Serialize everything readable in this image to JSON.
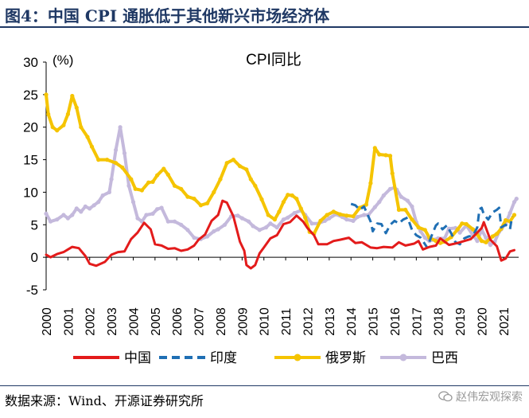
{
  "figure_title": "图4：中国 CPI 通胀低于其他新兴市场经济体",
  "source_text": "数据来源：Wind、开源证券研究所",
  "watermark": "赵伟宏观探索",
  "chart_data": {
    "type": "line",
    "title": "CPI同比",
    "ylabel": "(%)",
    "ylim": [
      -5,
      30
    ],
    "yticks": [
      -5,
      0,
      5,
      10,
      15,
      20,
      25,
      30
    ],
    "xlim": [
      2000,
      2021.7
    ],
    "xticks": [
      "2000",
      "2001",
      "2002",
      "2003",
      "2004",
      "2005",
      "2006",
      "2007",
      "2008",
      "2009",
      "2010",
      "2011",
      "2012",
      "2013",
      "2014",
      "2015",
      "2016",
      "2017",
      "2018",
      "2019",
      "2020",
      "2021"
    ],
    "grid": false,
    "legend_position": "bottom",
    "series": [
      {
        "name": "中国",
        "color": "#e31b1b",
        "style": "solid",
        "points": [
          [
            2000.0,
            0.4
          ],
          [
            2000.2,
            0.0
          ],
          [
            2000.5,
            0.5
          ],
          [
            2000.8,
            0.8
          ],
          [
            2001.0,
            1.2
          ],
          [
            2001.2,
            1.6
          ],
          [
            2001.5,
            1.4
          ],
          [
            2001.8,
            0.2
          ],
          [
            2002.0,
            -1.0
          ],
          [
            2002.3,
            -1.3
          ],
          [
            2002.7,
            -0.7
          ],
          [
            2003.0,
            0.4
          ],
          [
            2003.3,
            0.8
          ],
          [
            2003.6,
            0.9
          ],
          [
            2003.9,
            2.8
          ],
          [
            2004.2,
            3.8
          ],
          [
            2004.5,
            5.3
          ],
          [
            2004.8,
            4.3
          ],
          [
            2005.0,
            2.0
          ],
          [
            2005.3,
            1.8
          ],
          [
            2005.6,
            1.3
          ],
          [
            2005.9,
            1.4
          ],
          [
            2006.2,
            1.0
          ],
          [
            2006.5,
            1.2
          ],
          [
            2006.8,
            1.8
          ],
          [
            2007.0,
            2.7
          ],
          [
            2007.3,
            3.5
          ],
          [
            2007.6,
            5.6
          ],
          [
            2007.9,
            6.5
          ],
          [
            2008.1,
            8.7
          ],
          [
            2008.3,
            8.4
          ],
          [
            2008.6,
            6.3
          ],
          [
            2008.9,
            2.4
          ],
          [
            2009.1,
            1.0
          ],
          [
            2009.2,
            -1.2
          ],
          [
            2009.4,
            -1.7
          ],
          [
            2009.6,
            -1.2
          ],
          [
            2009.8,
            0.6
          ],
          [
            2010.0,
            1.5
          ],
          [
            2010.3,
            2.9
          ],
          [
            2010.6,
            3.4
          ],
          [
            2010.9,
            5.1
          ],
          [
            2011.2,
            5.4
          ],
          [
            2011.5,
            6.4
          ],
          [
            2011.8,
            5.5
          ],
          [
            2012.0,
            4.5
          ],
          [
            2012.3,
            3.4
          ],
          [
            2012.5,
            2.0
          ],
          [
            2012.9,
            2.0
          ],
          [
            2013.2,
            2.5
          ],
          [
            2013.5,
            2.7
          ],
          [
            2013.9,
            3.0
          ],
          [
            2014.2,
            2.2
          ],
          [
            2014.5,
            2.3
          ],
          [
            2014.9,
            1.5
          ],
          [
            2015.2,
            1.4
          ],
          [
            2015.5,
            1.6
          ],
          [
            2015.9,
            1.5
          ],
          [
            2016.2,
            2.3
          ],
          [
            2016.5,
            1.8
          ],
          [
            2016.9,
            2.1
          ],
          [
            2017.1,
            2.5
          ],
          [
            2017.3,
            1.2
          ],
          [
            2017.6,
            1.6
          ],
          [
            2017.9,
            1.8
          ],
          [
            2018.1,
            2.9
          ],
          [
            2018.5,
            1.9
          ],
          [
            2018.9,
            2.2
          ],
          [
            2019.2,
            2.5
          ],
          [
            2019.5,
            2.8
          ],
          [
            2019.8,
            3.8
          ],
          [
            2020.0,
            4.5
          ],
          [
            2020.1,
            5.4
          ],
          [
            2020.4,
            2.7
          ],
          [
            2020.7,
            1.7
          ],
          [
            2020.9,
            -0.5
          ],
          [
            2021.1,
            -0.2
          ],
          [
            2021.3,
            0.9
          ],
          [
            2021.5,
            1.1
          ]
        ]
      },
      {
        "name": "印度",
        "color": "#1f6fb4",
        "style": "dashed",
        "points": [
          [
            2014.0,
            8.2
          ],
          [
            2014.2,
            8.0
          ],
          [
            2014.4,
            7.3
          ],
          [
            2014.6,
            7.8
          ],
          [
            2014.9,
            5.5
          ],
          [
            2015.0,
            4.0
          ],
          [
            2015.2,
            5.2
          ],
          [
            2015.4,
            5.1
          ],
          [
            2015.6,
            3.7
          ],
          [
            2015.8,
            5.0
          ],
          [
            2016.0,
            5.6
          ],
          [
            2016.2,
            5.2
          ],
          [
            2016.4,
            5.8
          ],
          [
            2016.6,
            6.1
          ],
          [
            2016.8,
            4.2
          ],
          [
            2017.0,
            3.4
          ],
          [
            2017.2,
            3.0
          ],
          [
            2017.4,
            2.0
          ],
          [
            2017.5,
            1.5
          ],
          [
            2017.7,
            3.3
          ],
          [
            2017.9,
            4.9
          ],
          [
            2018.0,
            5.2
          ],
          [
            2018.2,
            4.3
          ],
          [
            2018.4,
            4.9
          ],
          [
            2018.6,
            3.7
          ],
          [
            2018.8,
            2.3
          ],
          [
            2019.0,
            2.0
          ],
          [
            2019.2,
            2.9
          ],
          [
            2019.4,
            3.2
          ],
          [
            2019.6,
            3.3
          ],
          [
            2019.8,
            4.6
          ],
          [
            2019.9,
            7.4
          ],
          [
            2020.0,
            7.6
          ],
          [
            2020.1,
            6.6
          ],
          [
            2020.3,
            5.8
          ],
          [
            2020.5,
            6.9
          ],
          [
            2020.7,
            7.3
          ],
          [
            2020.8,
            7.6
          ],
          [
            2020.9,
            4.6
          ],
          [
            2021.1,
            5.0
          ],
          [
            2021.3,
            4.3
          ],
          [
            2021.4,
            6.3
          ]
        ]
      },
      {
        "name": "俄罗斯",
        "color": "#f5c400",
        "style": "solid-marker",
        "points": [
          [
            2000.0,
            25.0
          ],
          [
            2000.1,
            22.0
          ],
          [
            2000.3,
            20.0
          ],
          [
            2000.5,
            19.5
          ],
          [
            2000.8,
            20.3
          ],
          [
            2001.0,
            22.0
          ],
          [
            2001.2,
            24.8
          ],
          [
            2001.4,
            23.0
          ],
          [
            2001.6,
            20.0
          ],
          [
            2001.9,
            18.5
          ],
          [
            2002.1,
            17.0
          ],
          [
            2002.4,
            15.0
          ],
          [
            2002.8,
            15.0
          ],
          [
            2003.2,
            14.5
          ],
          [
            2003.5,
            13.8
          ],
          [
            2003.9,
            12.0
          ],
          [
            2004.1,
            10.5
          ],
          [
            2004.4,
            10.3
          ],
          [
            2004.7,
            11.5
          ],
          [
            2004.9,
            11.6
          ],
          [
            2005.1,
            12.6
          ],
          [
            2005.4,
            13.6
          ],
          [
            2005.6,
            12.7
          ],
          [
            2005.9,
            11.0
          ],
          [
            2006.2,
            10.5
          ],
          [
            2006.5,
            9.3
          ],
          [
            2006.8,
            9.0
          ],
          [
            2007.1,
            8.0
          ],
          [
            2007.4,
            8.3
          ],
          [
            2007.7,
            10.0
          ],
          [
            2008.0,
            12.0
          ],
          [
            2008.3,
            14.5
          ],
          [
            2008.6,
            15.0
          ],
          [
            2008.9,
            14.0
          ],
          [
            2009.2,
            13.5
          ],
          [
            2009.4,
            12.0
          ],
          [
            2009.6,
            11.0
          ],
          [
            2009.9,
            8.9
          ],
          [
            2010.2,
            6.5
          ],
          [
            2010.5,
            5.8
          ],
          [
            2010.7,
            7.0
          ],
          [
            2010.9,
            8.5
          ],
          [
            2011.1,
            9.6
          ],
          [
            2011.3,
            9.5
          ],
          [
            2011.5,
            9.0
          ],
          [
            2011.7,
            7.5
          ],
          [
            2011.9,
            6.1
          ],
          [
            2012.1,
            3.9
          ],
          [
            2012.3,
            3.6
          ],
          [
            2012.6,
            5.6
          ],
          [
            2012.9,
            6.5
          ],
          [
            2013.2,
            7.0
          ],
          [
            2013.5,
            6.6
          ],
          [
            2013.8,
            6.4
          ],
          [
            2014.1,
            6.3
          ],
          [
            2014.4,
            7.6
          ],
          [
            2014.7,
            8.1
          ],
          [
            2014.9,
            11.4
          ],
          [
            2015.1,
            16.8
          ],
          [
            2015.3,
            15.8
          ],
          [
            2015.6,
            15.7
          ],
          [
            2015.8,
            15.6
          ],
          [
            2015.9,
            12.9
          ],
          [
            2016.2,
            7.3
          ],
          [
            2016.5,
            7.3
          ],
          [
            2016.8,
            5.8
          ],
          [
            2017.1,
            4.6
          ],
          [
            2017.4,
            4.2
          ],
          [
            2017.6,
            3.0
          ],
          [
            2017.9,
            2.5
          ],
          [
            2018.1,
            2.2
          ],
          [
            2018.3,
            2.4
          ],
          [
            2018.6,
            3.1
          ],
          [
            2018.9,
            4.3
          ],
          [
            2019.1,
            5.2
          ],
          [
            2019.3,
            5.1
          ],
          [
            2019.6,
            4.3
          ],
          [
            2019.8,
            3.5
          ],
          [
            2020.0,
            2.5
          ],
          [
            2020.2,
            2.3
          ],
          [
            2020.5,
            3.2
          ],
          [
            2020.7,
            3.6
          ],
          [
            2020.9,
            4.4
          ],
          [
            2021.1,
            5.7
          ],
          [
            2021.3,
            5.5
          ],
          [
            2021.5,
            6.5
          ]
        ]
      },
      {
        "name": "巴西",
        "color": "#c4b9dc",
        "style": "solid-marker",
        "points": [
          [
            2000.0,
            6.7
          ],
          [
            2000.2,
            5.5
          ],
          [
            2000.5,
            5.8
          ],
          [
            2000.8,
            6.5
          ],
          [
            2001.0,
            6.0
          ],
          [
            2001.2,
            6.5
          ],
          [
            2001.4,
            7.5
          ],
          [
            2001.6,
            7.0
          ],
          [
            2001.8,
            7.8
          ],
          [
            2002.0,
            7.5
          ],
          [
            2002.2,
            8.0
          ],
          [
            2002.4,
            8.5
          ],
          [
            2002.6,
            9.5
          ],
          [
            2002.9,
            10.0
          ],
          [
            2003.0,
            12.0
          ],
          [
            2003.2,
            16.5
          ],
          [
            2003.4,
            20.0
          ],
          [
            2003.6,
            16.0
          ],
          [
            2003.8,
            11.0
          ],
          [
            2004.0,
            8.5
          ],
          [
            2004.2,
            6.0
          ],
          [
            2004.4,
            5.5
          ],
          [
            2004.6,
            6.5
          ],
          [
            2004.9,
            6.7
          ],
          [
            2005.1,
            7.4
          ],
          [
            2005.3,
            7.6
          ],
          [
            2005.6,
            5.5
          ],
          [
            2005.9,
            5.5
          ],
          [
            2006.2,
            5.0
          ],
          [
            2006.5,
            4.2
          ],
          [
            2006.8,
            3.0
          ],
          [
            2007.1,
            2.8
          ],
          [
            2007.4,
            3.2
          ],
          [
            2007.7,
            4.0
          ],
          [
            2007.9,
            4.3
          ],
          [
            2008.2,
            5.0
          ],
          [
            2008.5,
            6.3
          ],
          [
            2008.8,
            6.4
          ],
          [
            2009.0,
            6.0
          ],
          [
            2009.3,
            5.5
          ],
          [
            2009.5,
            4.8
          ],
          [
            2009.8,
            4.2
          ],
          [
            2010.1,
            4.6
          ],
          [
            2010.3,
            5.2
          ],
          [
            2010.6,
            4.6
          ],
          [
            2010.9,
            5.8
          ],
          [
            2011.1,
            6.1
          ],
          [
            2011.4,
            6.8
          ],
          [
            2011.7,
            7.2
          ],
          [
            2011.9,
            6.5
          ],
          [
            2012.2,
            5.2
          ],
          [
            2012.5,
            5.2
          ],
          [
            2012.8,
            5.6
          ],
          [
            2013.0,
            6.0
          ],
          [
            2013.3,
            6.6
          ],
          [
            2013.6,
            6.2
          ],
          [
            2013.8,
            5.8
          ],
          [
            2014.1,
            5.6
          ],
          [
            2014.3,
            6.2
          ],
          [
            2014.6,
            6.5
          ],
          [
            2014.8,
            6.5
          ],
          [
            2015.1,
            7.7
          ],
          [
            2015.3,
            8.5
          ],
          [
            2015.5,
            9.5
          ],
          [
            2015.8,
            10.5
          ],
          [
            2016.0,
            10.7
          ],
          [
            2016.1,
            10.4
          ],
          [
            2016.3,
            9.3
          ],
          [
            2016.6,
            8.7
          ],
          [
            2016.8,
            7.8
          ],
          [
            2017.0,
            5.4
          ],
          [
            2017.2,
            4.0
          ],
          [
            2017.4,
            3.0
          ],
          [
            2017.6,
            2.5
          ],
          [
            2017.8,
            2.7
          ],
          [
            2018.0,
            2.9
          ],
          [
            2018.3,
            2.9
          ],
          [
            2018.5,
            4.4
          ],
          [
            2018.8,
            4.5
          ],
          [
            2019.0,
            3.8
          ],
          [
            2019.3,
            4.9
          ],
          [
            2019.6,
            3.4
          ],
          [
            2019.8,
            2.5
          ],
          [
            2020.0,
            4.2
          ],
          [
            2020.2,
            3.0
          ],
          [
            2020.4,
            1.9
          ],
          [
            2020.6,
            2.4
          ],
          [
            2020.8,
            3.9
          ],
          [
            2020.9,
            4.3
          ],
          [
            2021.1,
            5.2
          ],
          [
            2021.3,
            6.8
          ],
          [
            2021.5,
            8.5
          ],
          [
            2021.6,
            9.0
          ]
        ]
      }
    ]
  }
}
